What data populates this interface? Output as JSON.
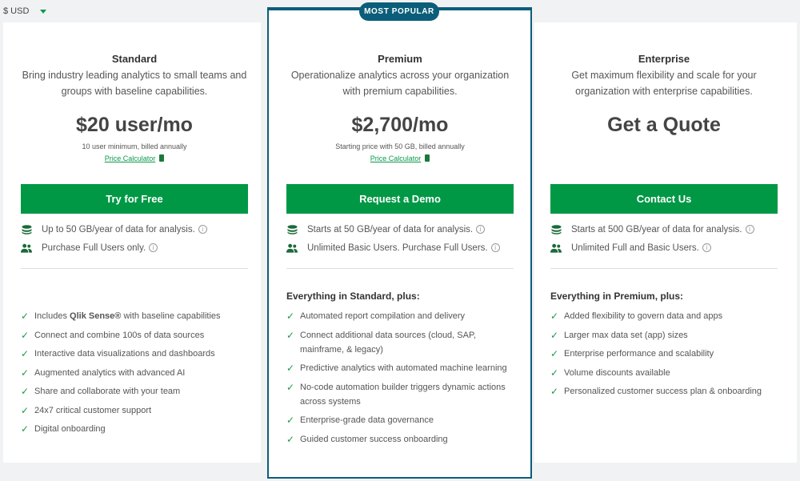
{
  "currency": {
    "label": "$ USD"
  },
  "badge": "MOST POPULAR",
  "colors": {
    "accent": "#009845",
    "highlight": "#0b5e7a"
  },
  "plans": [
    {
      "name": "Standard",
      "desc": "Bring industry leading analytics to small teams and groups with baseline capabilities.",
      "price": "$20 user/mo",
      "sub": "10 user minimum, billed annually",
      "calc": "Price Calculator",
      "button": "Try for Free",
      "features": [
        "Up to 50 GB/year of data for analysis.",
        "Purchase Full Users only."
      ],
      "header": "",
      "list": [
        "Includes |Qlik Sense®| with baseline capabilities",
        "Connect and combine 100s of data sources",
        "Interactive data visualizations and dashboards",
        "Augmented analytics with advanced AI",
        "Share and collaborate with your team",
        "24x7 critical customer support",
        "Digital onboarding"
      ]
    },
    {
      "name": "Premium",
      "desc": "Operationalize analytics across your organization with premium capabilities.",
      "price": "$2,700/mo",
      "sub": "Starting price with 50 GB, billed annually",
      "calc": "Price Calculator",
      "button": "Request a Demo",
      "features": [
        "Starts at 50 GB/year of data for analysis.",
        "Unlimited Basic Users. Purchase Full Users."
      ],
      "header": "Everything in Standard, plus:",
      "list": [
        "Automated report compilation and delivery",
        "Connect additional data sources (cloud, SAP, mainframe, & legacy)",
        "Predictive analytics with automated machine learning",
        "No-code automation builder triggers dynamic actions across systems",
        "Enterprise-grade data governance",
        "Guided customer success onboarding"
      ]
    },
    {
      "name": "Enterprise",
      "desc": "Get maximum flexibility and scale for your organization with enterprise capabilities.",
      "price": "Get a Quote",
      "sub": "",
      "calc": "",
      "button": "Contact Us",
      "features": [
        "Starts at 500 GB/year of data for analysis.",
        "Unlimited Full and Basic Users."
      ],
      "header": "Everything in Premium, plus:",
      "list": [
        "Added flexibility to govern data and apps",
        "Larger max data set (app) sizes",
        "Enterprise performance and scalability",
        "Volume discounts available",
        "Personalized customer success plan & onboarding"
      ]
    }
  ]
}
